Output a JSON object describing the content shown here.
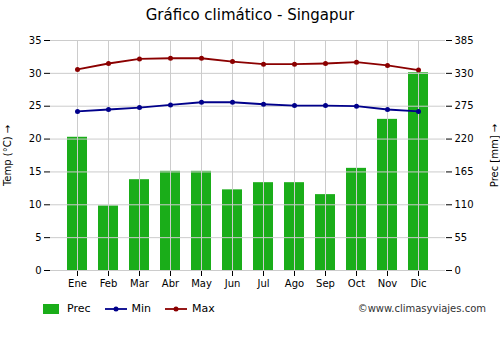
{
  "chart_data": {
    "type": "bar",
    "title": "Gráfico climático - Singapur",
    "categories": [
      "Ene",
      "Feb",
      "Mar",
      "Abr",
      "May",
      "Jun",
      "Jul",
      "Ago",
      "Sep",
      "Oct",
      "Nov",
      "Dic"
    ],
    "series": [
      {
        "name": "Prec",
        "type": "bar",
        "axis": "y2",
        "color": "#1aad19",
        "values": [
          223,
          108,
          152,
          166,
          166,
          135,
          147,
          147,
          127,
          171,
          253,
          331
        ]
      },
      {
        "name": "Min",
        "type": "line",
        "color": "#00008b",
        "marker": "circle",
        "values": [
          24.2,
          24.5,
          24.8,
          25.2,
          25.6,
          25.6,
          25.3,
          25.1,
          25.1,
          25.0,
          24.5,
          24.2
        ]
      },
      {
        "name": "Max",
        "type": "line",
        "color": "#8b0000",
        "marker": "circle",
        "values": [
          30.6,
          31.5,
          32.2,
          32.3,
          32.3,
          31.8,
          31.4,
          31.4,
          31.5,
          31.7,
          31.2,
          30.5
        ]
      }
    ],
    "ylabel": "Temp (°C)",
    "y2label": "Prec [mm]",
    "ylim": [
      0,
      35
    ],
    "yticks": [
      0,
      5,
      10,
      15,
      20,
      25,
      30,
      35
    ],
    "y2lim": [
      0,
      385
    ],
    "y2ticks": [
      0,
      55,
      110,
      165,
      220,
      275,
      330,
      385
    ],
    "grid": true,
    "legend": "bottom",
    "annotations": [
      "©www.climasyviajes.com"
    ]
  }
}
